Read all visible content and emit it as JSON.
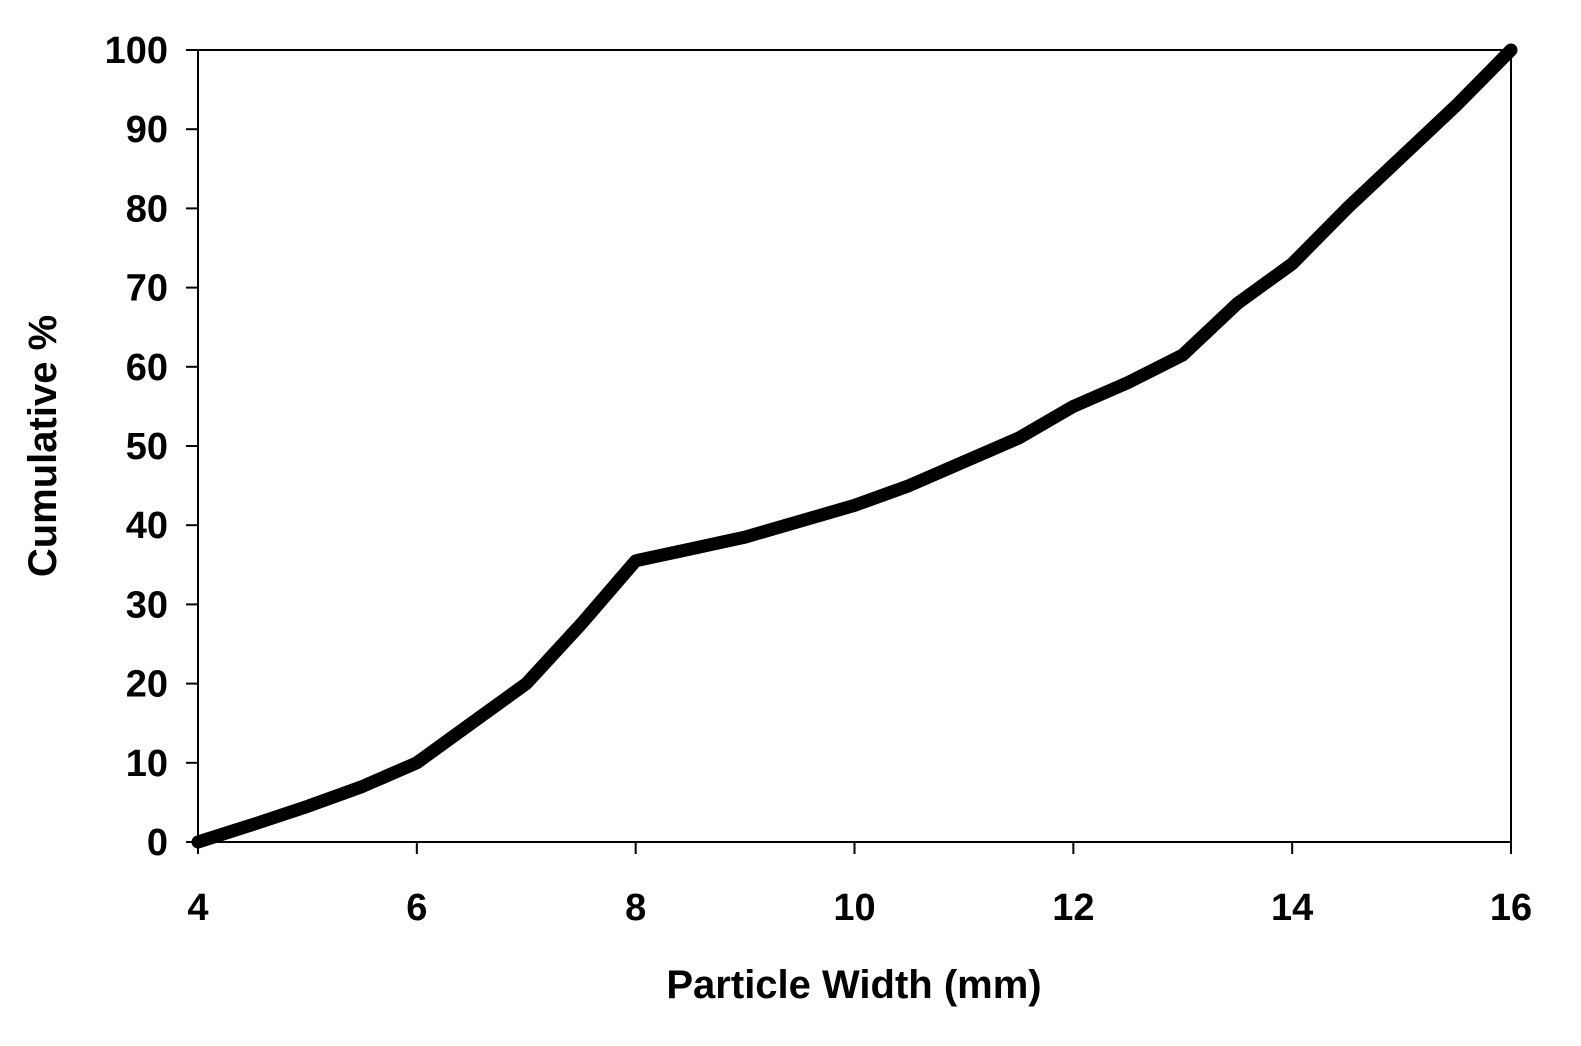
{
  "chart_data": {
    "type": "line",
    "title": "",
    "xlabel": "Particle Width (mm)",
    "ylabel": "Cumulative %",
    "xlim": [
      4,
      16
    ],
    "ylim": [
      0,
      100
    ],
    "x_ticks": [
      "4",
      "6",
      "8",
      "10",
      "12",
      "14",
      "16"
    ],
    "y_ticks": [
      "0",
      "10",
      "20",
      "30",
      "40",
      "50",
      "60",
      "70",
      "80",
      "90",
      "100"
    ],
    "grid": false,
    "legend": "none",
    "colors": {
      "line": "#000000",
      "axes": "#000000",
      "background": "#ffffff"
    },
    "series": [
      {
        "x": [
          4.0,
          4.5,
          5.0,
          5.5,
          6.0,
          6.5,
          7.0,
          7.5,
          8.0,
          8.5,
          9.0,
          9.5,
          10.0,
          10.5,
          11.0,
          11.5,
          12.0,
          12.5,
          13.0,
          13.5,
          14.0,
          14.5,
          15.0,
          15.5,
          16.0
        ],
        "y": [
          0.0,
          2.2,
          4.5,
          7.0,
          10.0,
          15.0,
          20.0,
          27.5,
          35.5,
          37.0,
          38.5,
          40.5,
          42.5,
          45.0,
          48.0,
          51.0,
          55.0,
          58.0,
          61.5,
          68.0,
          73.0,
          80.0,
          86.5,
          93.0,
          100.0
        ]
      }
    ]
  }
}
